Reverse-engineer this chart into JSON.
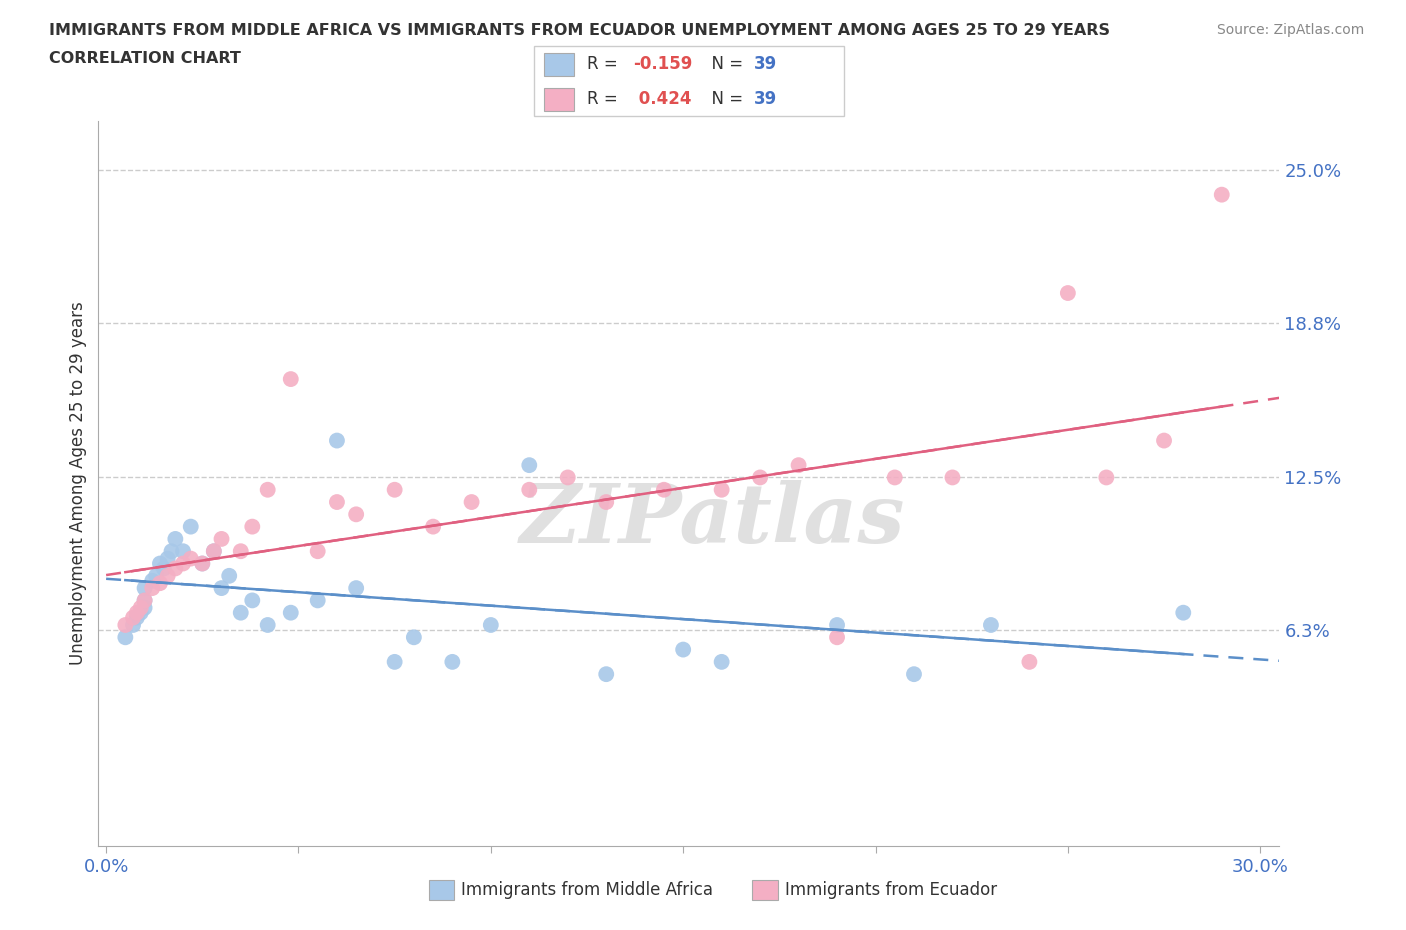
{
  "title_line1": "IMMIGRANTS FROM MIDDLE AFRICA VS IMMIGRANTS FROM ECUADOR UNEMPLOYMENT AMONG AGES 25 TO 29 YEARS",
  "title_line2": "CORRELATION CHART",
  "source": "Source: ZipAtlas.com",
  "ylabel": "Unemployment Among Ages 25 to 29 years",
  "xlim": [
    -0.002,
    0.305
  ],
  "ylim": [
    -0.025,
    0.27
  ],
  "ytick_vals": [
    0.063,
    0.125,
    0.188,
    0.25
  ],
  "ytick_labels": [
    "6.3%",
    "12.5%",
    "18.8%",
    "25.0%"
  ],
  "xtick_vals": [
    0.0,
    0.05,
    0.1,
    0.15,
    0.2,
    0.25,
    0.3
  ],
  "xtick_labels_show": {
    "0.0": "0.0%",
    "0.3": "30.0%"
  },
  "r_middle_africa": -0.159,
  "n_middle_africa": 39,
  "r_ecuador": 0.424,
  "n_ecuador": 39,
  "color_middle_africa": "#a8c8e8",
  "color_ecuador": "#f4afc4",
  "color_trend_middle_africa": "#5b8fc9",
  "color_trend_ecuador": "#e06080",
  "legend_label_1": "Immigrants from Middle Africa",
  "legend_label_2": "Immigrants from Ecuador",
  "watermark": "ZIPatlas",
  "middle_africa_x": [
    0.005,
    0.007,
    0.008,
    0.009,
    0.01,
    0.01,
    0.01,
    0.012,
    0.013,
    0.014,
    0.015,
    0.016,
    0.017,
    0.018,
    0.02,
    0.022,
    0.025,
    0.028,
    0.03,
    0.032,
    0.035,
    0.038,
    0.042,
    0.048,
    0.055,
    0.06,
    0.065,
    0.075,
    0.08,
    0.09,
    0.1,
    0.11,
    0.13,
    0.15,
    0.16,
    0.19,
    0.21,
    0.23,
    0.28
  ],
  "middle_africa_y": [
    0.06,
    0.065,
    0.068,
    0.07,
    0.072,
    0.075,
    0.08,
    0.083,
    0.085,
    0.09,
    0.088,
    0.092,
    0.095,
    0.1,
    0.095,
    0.105,
    0.09,
    0.095,
    0.08,
    0.085,
    0.07,
    0.075,
    0.065,
    0.07,
    0.075,
    0.14,
    0.08,
    0.05,
    0.06,
    0.05,
    0.065,
    0.13,
    0.045,
    0.055,
    0.05,
    0.065,
    0.045,
    0.065,
    0.07
  ],
  "ecuador_x": [
    0.005,
    0.007,
    0.008,
    0.009,
    0.01,
    0.012,
    0.014,
    0.016,
    0.018,
    0.02,
    0.022,
    0.025,
    0.028,
    0.03,
    0.035,
    0.038,
    0.042,
    0.048,
    0.055,
    0.06,
    0.065,
    0.075,
    0.085,
    0.095,
    0.11,
    0.12,
    0.13,
    0.145,
    0.16,
    0.17,
    0.18,
    0.19,
    0.205,
    0.22,
    0.24,
    0.25,
    0.26,
    0.275,
    0.29
  ],
  "ecuador_y": [
    0.065,
    0.068,
    0.07,
    0.072,
    0.075,
    0.08,
    0.082,
    0.085,
    0.088,
    0.09,
    0.092,
    0.09,
    0.095,
    0.1,
    0.095,
    0.105,
    0.12,
    0.165,
    0.095,
    0.115,
    0.11,
    0.12,
    0.105,
    0.115,
    0.12,
    0.125,
    0.115,
    0.12,
    0.12,
    0.125,
    0.13,
    0.06,
    0.125,
    0.125,
    0.05,
    0.2,
    0.125,
    0.14,
    0.24
  ]
}
